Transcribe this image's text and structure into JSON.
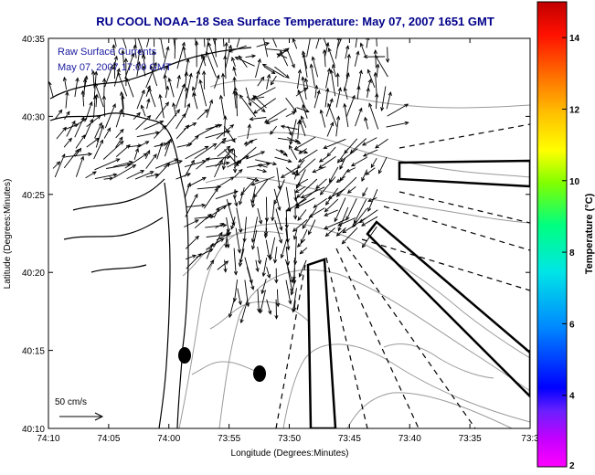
{
  "colors": {
    "title": "#00008b",
    "legend_text": "#1a1aa0",
    "frame": "#000000",
    "land_contour": "#000000",
    "depth_contour": "#9a9a9a",
    "vectors": "#000000"
  },
  "chart_data": {
    "type": "vector-field map",
    "title": "RU COOL  NOAA−18  Sea Surface Temperature:  May 07, 2007 1651 GMT",
    "legend": {
      "line1": "Raw Surface Currents",
      "line2": "May 07, 2007 17:00 GMT"
    },
    "xlabel": "Longitude (Degrees:Minutes)",
    "ylabel": "Latitude (Degrees:Minutes)",
    "x_ticks": [
      "74:10",
      "74:05",
      "74:00",
      "73:55",
      "73:50",
      "73:45",
      "73:40",
      "73:35",
      "73:3"
    ],
    "y_ticks": [
      "40:10",
      "40:15",
      "40:20",
      "40:25",
      "40:30",
      "40:35"
    ],
    "xlim_west_minutes": [
      750,
      690
    ],
    "ylim_minutes": [
      10,
      35
    ],
    "scale_arrow_label": "50 cm/s",
    "scale_arrow_speed_cm_s": 50,
    "colorbar": {
      "label": "Temperature (°C)",
      "min": 2,
      "max": 15,
      "ticks": [
        "2",
        "4",
        "6",
        "8",
        "10",
        "12",
        "14"
      ]
    }
  }
}
